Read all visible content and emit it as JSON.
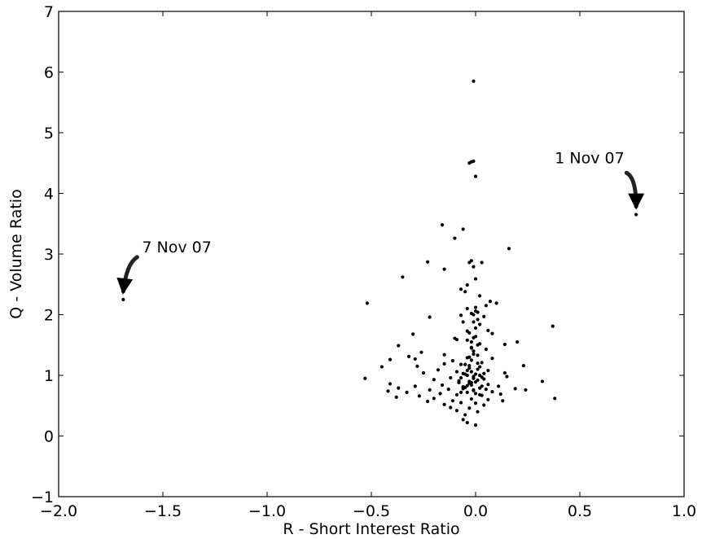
{
  "chart_data": {
    "type": "scatter",
    "title": "",
    "xlabel": "R - Short Interest Ratio",
    "ylabel": "Q - Volume Ratio",
    "xlim": [
      -2.0,
      1.0
    ],
    "ylim": [
      -1,
      7
    ],
    "xticks": [
      -2.0,
      -1.5,
      -1.0,
      -0.5,
      0.0,
      0.5,
      1.0
    ],
    "xtick_labels": [
      "−2.0",
      "−1.5",
      "−1.0",
      "−0.5",
      "0.0",
      "0.5",
      "1.0"
    ],
    "yticks": [
      -1,
      0,
      1,
      2,
      3,
      4,
      5,
      6,
      7
    ],
    "ytick_labels": [
      "−1",
      "0",
      "1",
      "2",
      "3",
      "4",
      "5",
      "6",
      "7"
    ],
    "grid": false,
    "marker_color": "#000000",
    "annotations": [
      {
        "text": "7 Nov 07",
        "point": [
          -1.69,
          2.25
        ],
        "text_anchor": [
          -1.6,
          3.03
        ]
      },
      {
        "text": "1 Nov 07",
        "point": [
          0.77,
          3.65
        ],
        "text_anchor": [
          0.38,
          4.5
        ]
      }
    ],
    "points": [
      [
        -1.69,
        2.25
      ],
      [
        0.77,
        3.65
      ],
      [
        -0.01,
        5.85
      ],
      [
        -0.03,
        4.5
      ],
      [
        -0.02,
        4.52
      ],
      [
        -0.01,
        4.53
      ],
      [
        0.0,
        4.28
      ],
      [
        -0.16,
        3.48
      ],
      [
        -0.06,
        3.41
      ],
      [
        -0.1,
        3.26
      ],
      [
        0.16,
        3.09
      ],
      [
        -0.23,
        2.87
      ],
      [
        -0.03,
        2.86
      ],
      [
        -0.02,
        2.89
      ],
      [
        0.03,
        2.86
      ],
      [
        -0.15,
        2.75
      ],
      [
        -0.01,
        2.79
      ],
      [
        -0.35,
        2.62
      ],
      [
        0.0,
        2.59
      ],
      [
        -0.04,
        2.49
      ],
      [
        -0.07,
        2.42
      ],
      [
        -0.05,
        2.38
      ],
      [
        0.02,
        2.31
      ],
      [
        0.07,
        2.22
      ],
      [
        0.1,
        2.19
      ],
      [
        -0.52,
        2.19
      ],
      [
        0.05,
        2.15
      ],
      [
        -0.04,
        2.1
      ],
      [
        0.0,
        2.06
      ],
      [
        -0.02,
        2.02
      ],
      [
        0.01,
        2.04
      ],
      [
        -0.22,
        1.96
      ],
      [
        -0.07,
        1.99
      ],
      [
        0.04,
        1.97
      ],
      [
        -0.01,
        1.88
      ],
      [
        -0.06,
        1.88
      ],
      [
        0.02,
        1.84
      ],
      [
        0.37,
        1.81
      ],
      [
        0.06,
        1.74
      ],
      [
        -0.04,
        1.73
      ],
      [
        0.08,
        1.69
      ],
      [
        -0.3,
        1.68
      ],
      [
        0.0,
        1.64
      ],
      [
        -0.1,
        1.61
      ],
      [
        -0.09,
        1.59
      ],
      [
        0.2,
        1.55
      ],
      [
        0.02,
        1.52
      ],
      [
        0.14,
        1.51
      ],
      [
        -0.37,
        1.49
      ],
      [
        -0.02,
        1.46
      ],
      [
        0.05,
        1.43
      ],
      [
        -0.01,
        1.4
      ],
      [
        -0.26,
        1.38
      ],
      [
        -0.15,
        1.34
      ],
      [
        0.01,
        1.33
      ],
      [
        -0.32,
        1.31
      ],
      [
        -0.04,
        1.29
      ],
      [
        -0.29,
        1.27
      ],
      [
        0.08,
        1.28
      ],
      [
        -0.41,
        1.26
      ],
      [
        -0.11,
        1.24
      ],
      [
        0.03,
        1.21
      ],
      [
        -0.15,
        1.19
      ],
      [
        -0.07,
        1.18
      ],
      [
        0.23,
        1.16
      ],
      [
        -0.45,
        1.14
      ],
      [
        -0.28,
        1.15
      ],
      [
        -0.03,
        1.16
      ],
      [
        0.01,
        1.1
      ],
      [
        -0.18,
        1.09
      ],
      [
        0.06,
        1.08
      ],
      [
        -0.09,
        1.06
      ],
      [
        -0.25,
        1.04
      ],
      [
        0.14,
        1.04
      ],
      [
        -0.05,
        1.02
      ],
      [
        0.02,
        1.0
      ],
      [
        -0.01,
        0.98
      ],
      [
        0.15,
        0.98
      ],
      [
        -0.12,
        0.96
      ],
      [
        -0.53,
        0.95
      ],
      [
        0.04,
        0.94
      ],
      [
        -0.2,
        0.93
      ],
      [
        -0.08,
        0.91
      ],
      [
        0.32,
        0.9
      ],
      [
        0.0,
        0.89
      ],
      [
        -0.41,
        0.86
      ],
      [
        -0.03,
        0.87
      ],
      [
        0.06,
        0.85
      ],
      [
        -0.16,
        0.84
      ],
      [
        -0.29,
        0.82
      ],
      [
        0.11,
        0.82
      ],
      [
        -0.06,
        0.81
      ],
      [
        -0.37,
        0.79
      ],
      [
        0.02,
        0.79
      ],
      [
        0.19,
        0.78
      ],
      [
        -0.13,
        0.77
      ],
      [
        -0.22,
        0.76
      ],
      [
        0.24,
        0.76
      ],
      [
        -0.01,
        0.75
      ],
      [
        -0.42,
        0.74
      ],
      [
        0.08,
        0.73
      ],
      [
        -0.33,
        0.72
      ],
      [
        -0.04,
        0.72
      ],
      [
        -0.17,
        0.7
      ],
      [
        0.12,
        0.69
      ],
      [
        -0.09,
        0.68
      ],
      [
        -0.27,
        0.66
      ],
      [
        0.03,
        0.67
      ],
      [
        -0.38,
        0.64
      ],
      [
        0.38,
        0.62
      ],
      [
        -0.2,
        0.62
      ],
      [
        -0.02,
        0.61
      ],
      [
        0.06,
        0.6
      ],
      [
        -0.11,
        0.58
      ],
      [
        -0.23,
        0.57
      ],
      [
        0.13,
        0.58
      ],
      [
        -0.07,
        0.55
      ],
      [
        0.0,
        0.54
      ],
      [
        -0.15,
        0.52
      ],
      [
        0.04,
        0.51
      ],
      [
        -0.12,
        0.47
      ],
      [
        -0.03,
        0.46
      ],
      [
        -0.09,
        0.42
      ],
      [
        0.01,
        0.4
      ],
      [
        -0.05,
        0.35
      ],
      [
        -0.06,
        0.27
      ],
      [
        -0.04,
        0.22
      ],
      [
        0.0,
        0.18
      ],
      [
        -0.05,
        1.18
      ],
      [
        -0.03,
        1.12
      ],
      [
        -0.02,
        1.06
      ],
      [
        -0.04,
        1.0
      ],
      [
        -0.01,
        0.95
      ],
      [
        -0.03,
        0.9
      ],
      [
        -0.02,
        0.84
      ],
      [
        -0.05,
        0.8
      ],
      [
        -0.01,
        0.76
      ],
      [
        0.0,
        0.7
      ],
      [
        -0.02,
        1.25
      ],
      [
        0.01,
        1.2
      ],
      [
        -0.03,
        1.3
      ],
      [
        -0.01,
        1.35
      ],
      [
        0.02,
        1.14
      ],
      [
        -0.04,
        1.08
      ],
      [
        0.0,
        1.02
      ],
      [
        0.01,
        0.92
      ],
      [
        -0.02,
        0.88
      ],
      [
        -0.04,
        0.83
      ],
      [
        -0.06,
        1.03
      ],
      [
        -0.07,
        0.96
      ],
      [
        -0.08,
        0.88
      ],
      [
        -0.06,
        0.78
      ],
      [
        -0.07,
        0.72
      ],
      [
        0.03,
        0.97
      ],
      [
        0.04,
        1.03
      ],
      [
        0.03,
        0.82
      ],
      [
        0.05,
        0.77
      ],
      [
        0.02,
        0.68
      ],
      [
        -0.02,
        1.55
      ],
      [
        -0.01,
        1.62
      ],
      [
        -0.03,
        1.7
      ],
      [
        0.0,
        1.78
      ],
      [
        -0.02,
        1.45
      ],
      [
        0.01,
        1.5
      ],
      [
        -0.04,
        1.58
      ],
      [
        0.01,
        1.92
      ],
      [
        -0.01,
        2.0
      ],
      [
        0.0,
        2.12
      ]
    ]
  }
}
